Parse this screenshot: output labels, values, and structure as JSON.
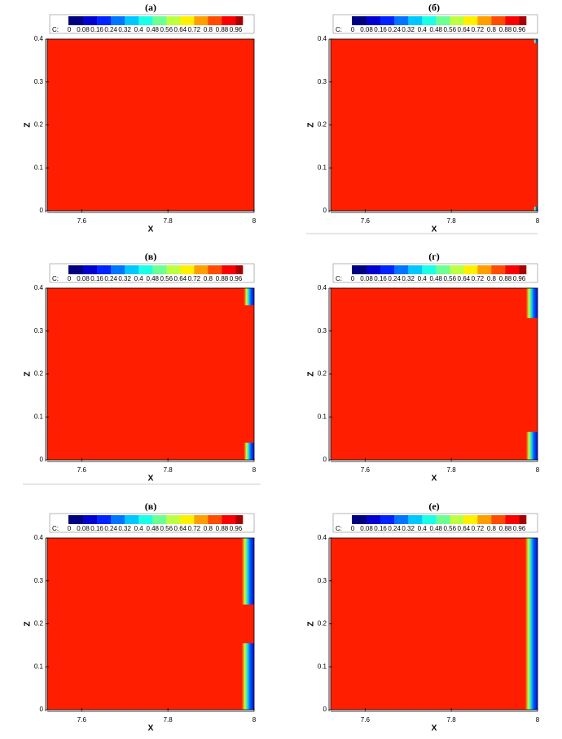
{
  "chart_data": [
    {
      "type": "contour",
      "title": "(а)",
      "x_label": "X",
      "y_label": "Z",
      "xlim": [
        7.52,
        8
      ],
      "ylim": [
        0,
        0.4
      ],
      "xticks": [
        7.6,
        7.8,
        8
      ],
      "yticks": [
        0,
        0.1,
        0.2,
        0.3,
        0.4
      ],
      "colorbar_label": "C:",
      "clim": [
        0,
        1
      ],
      "cticks": [
        0,
        0.08,
        0.16,
        0.24,
        0.32,
        0.4,
        0.48,
        0.56,
        0.64,
        0.72,
        0.8,
        0.88,
        0.96
      ],
      "regions": []
    },
    {
      "type": "contour",
      "title": "(б)",
      "x_label": "X",
      "y_label": "Z",
      "xlim": [
        7.52,
        8
      ],
      "ylim": [
        0,
        0.4
      ],
      "xticks": [
        7.6,
        7.8,
        8
      ],
      "yticks": [
        0,
        0.1,
        0.2,
        0.3,
        0.4
      ],
      "colorbar_label": "C:",
      "clim": [
        0,
        1
      ],
      "cticks": [
        0,
        0.08,
        0.16,
        0.24,
        0.32,
        0.4,
        0.48,
        0.56,
        0.64,
        0.72,
        0.8,
        0.88,
        0.96
      ],
      "regions": [
        {
          "xlim": [
            7.995,
            8
          ],
          "zlim": [
            0.39,
            0.4
          ]
        },
        {
          "xlim": [
            7.995,
            8
          ],
          "zlim": [
            0,
            0.01
          ]
        }
      ]
    },
    {
      "type": "contour",
      "title": "(в)",
      "x_label": "X",
      "y_label": "Z",
      "xlim": [
        7.52,
        8
      ],
      "ylim": [
        0,
        0.4
      ],
      "xticks": [
        7.6,
        7.8,
        8
      ],
      "yticks": [
        0,
        0.1,
        0.2,
        0.3,
        0.4
      ],
      "colorbar_label": "C:",
      "clim": [
        0,
        1
      ],
      "cticks": [
        0,
        0.08,
        0.16,
        0.24,
        0.32,
        0.4,
        0.48,
        0.56,
        0.64,
        0.72,
        0.8,
        0.88,
        0.96
      ],
      "regions": [
        {
          "xlim": [
            7.98,
            8
          ],
          "zlim": [
            0.36,
            0.4
          ]
        },
        {
          "xlim": [
            7.98,
            8
          ],
          "zlim": [
            0,
            0.04
          ]
        }
      ]
    },
    {
      "type": "contour",
      "title": "(г)",
      "x_label": "X",
      "y_label": "Z",
      "xlim": [
        7.52,
        8
      ],
      "ylim": [
        0,
        0.4
      ],
      "xticks": [
        7.6,
        7.8,
        8
      ],
      "yticks": [
        0,
        0.1,
        0.2,
        0.3,
        0.4
      ],
      "colorbar_label": "C:",
      "clim": [
        0,
        1
      ],
      "cticks": [
        0,
        0.08,
        0.16,
        0.24,
        0.32,
        0.4,
        0.48,
        0.56,
        0.64,
        0.72,
        0.8,
        0.88,
        0.96
      ],
      "regions": [
        {
          "xlim": [
            7.977,
            8
          ],
          "zlim": [
            0.33,
            0.4
          ]
        },
        {
          "xlim": [
            7.977,
            8
          ],
          "zlim": [
            0,
            0.065
          ]
        }
      ]
    },
    {
      "type": "contour",
      "title": "(в)",
      "x_label": "X",
      "y_label": "Z",
      "xlim": [
        7.52,
        8
      ],
      "ylim": [
        0,
        0.4
      ],
      "xticks": [
        7.6,
        7.8,
        8
      ],
      "yticks": [
        0,
        0.1,
        0.2,
        0.3,
        0.4
      ],
      "colorbar_label": "C:",
      "clim": [
        0,
        1
      ],
      "cticks": [
        0,
        0.08,
        0.16,
        0.24,
        0.32,
        0.4,
        0.48,
        0.56,
        0.64,
        0.72,
        0.8,
        0.88,
        0.96
      ],
      "regions": [
        {
          "xlim": [
            7.975,
            8
          ],
          "zlim": [
            0.245,
            0.4
          ]
        },
        {
          "xlim": [
            7.975,
            8
          ],
          "zlim": [
            0,
            0.155
          ]
        }
      ]
    },
    {
      "type": "contour",
      "title": "(е)",
      "x_label": "X",
      "y_label": "Z",
      "xlim": [
        7.52,
        8
      ],
      "ylim": [
        0,
        0.4
      ],
      "xticks": [
        7.6,
        7.8,
        8
      ],
      "yticks": [
        0,
        0.1,
        0.2,
        0.3,
        0.4
      ],
      "colorbar_label": "C:",
      "clim": [
        0,
        1
      ],
      "cticks": [
        0,
        0.08,
        0.16,
        0.24,
        0.32,
        0.4,
        0.48,
        0.56,
        0.64,
        0.72,
        0.8,
        0.88,
        0.96
      ],
      "regions": [
        {
          "xlim": [
            7.975,
            8
          ],
          "zlim": [
            0,
            0.4
          ]
        }
      ]
    }
  ]
}
